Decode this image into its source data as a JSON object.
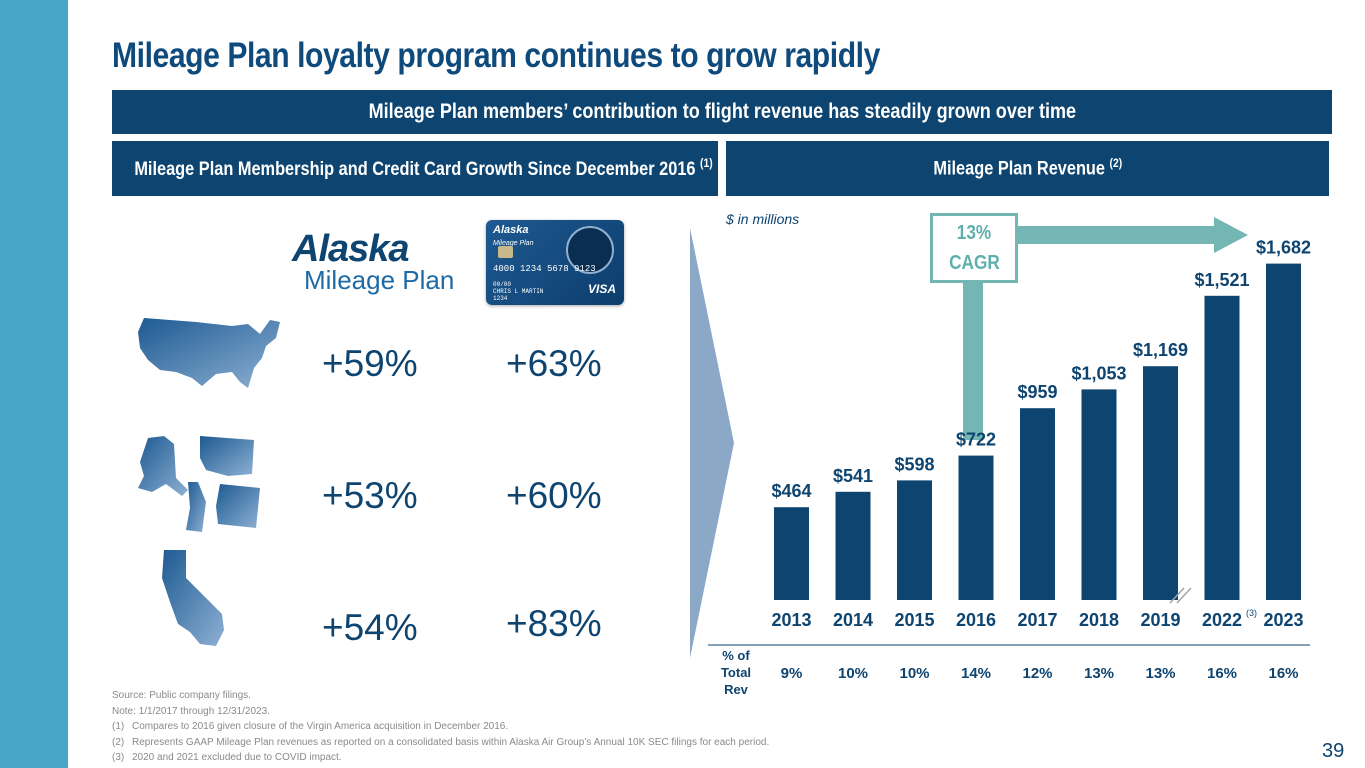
{
  "title": "Mileage Plan loyalty program continues to grow rapidly",
  "banner": "Mileage Plan members’ contribution to flight revenue has steadily grown over time",
  "left_panel": {
    "heading": "Mileage Plan Membership and Credit Card Growth Since December 2016",
    "heading_note": "(1)",
    "logo_word": "Alaska",
    "logo_sub": "Mileage Plan",
    "card": {
      "brand": "Alaska",
      "brand_sub": "Mileage Plan",
      "number": "4000 1234 5678 9123",
      "expiry": "00/00",
      "name": "CHRIS L MARTIN",
      "name_sub": "1234",
      "network": "VISA"
    },
    "rows": [
      {
        "region": "United States",
        "membership": "+59%",
        "credit_card": "+63%"
      },
      {
        "region": "Alaska, Washington, Idaho, Oregon",
        "membership": "+53%",
        "credit_card": "+60%"
      },
      {
        "region": "California",
        "membership": "+54%",
        "credit_card": "+83%"
      }
    ]
  },
  "right_panel": {
    "heading": "Mileage Plan Revenue",
    "heading_note": "(2)",
    "unit": "$ in millions",
    "cagr_value": "13%",
    "cagr_label": "CAGR"
  },
  "chart_data": {
    "type": "bar",
    "categories": [
      "2013",
      "2014",
      "2015",
      "2016",
      "2017",
      "2018",
      "2019",
      "2022",
      "2023"
    ],
    "values": [
      464,
      541,
      598,
      722,
      959,
      1053,
      1169,
      1521,
      1682
    ],
    "value_labels": [
      "$464",
      "$541",
      "$598",
      "$722",
      "$959",
      "$1,053",
      "$1,169",
      "$1,521",
      "$1,682"
    ],
    "category_note": {
      "category": "2022",
      "note": "(3)"
    },
    "row_label_lines": [
      "% of",
      "Total",
      "Rev"
    ],
    "pct_of_total_rev": [
      "9%",
      "10%",
      "10%",
      "14%",
      "12%",
      "13%",
      "13%",
      "16%",
      "16%"
    ],
    "ylim": [
      0,
      1700
    ],
    "color": "#0e4470"
  },
  "footnotes": {
    "source": "Source: Public company filings.",
    "note": "Note: 1/1/2017 through 12/31/2023.",
    "items": [
      {
        "num": "(1)",
        "text": "Compares to 2016 given closure of the Virgin America acquisition in December 2016."
      },
      {
        "num": "(2)",
        "text": "Represents GAAP Mileage Plan revenues as reported on a consolidated basis within Alaska Air Group’s Annual 10K SEC filings for each period."
      },
      {
        "num": "(3)",
        "text": "2020 and 2021 excluded due to COVID impact."
      }
    ]
  },
  "page_number": "39",
  "colors": {
    "navy": "#0e4470",
    "teal": "#74b6b4",
    "side_bar": "#48a7c8",
    "arrow": "#8ba8c7"
  }
}
